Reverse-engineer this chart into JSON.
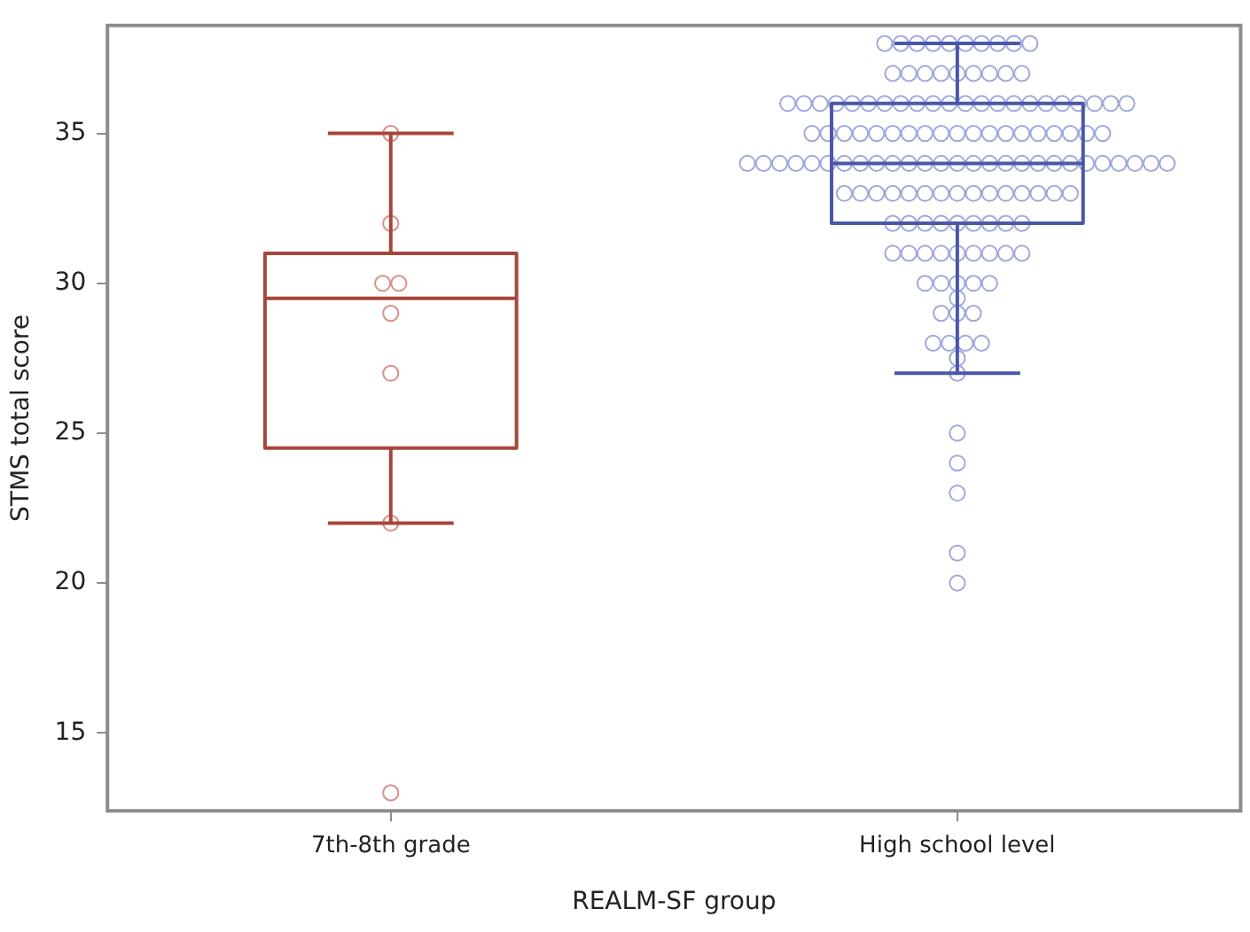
{
  "chart_data": {
    "type": "box",
    "xlabel": "REALM-SF group",
    "ylabel": "STMS total score",
    "categories": [
      "7th-8th grade",
      "High school level"
    ],
    "colors": [
      "#a8453a",
      "#4a58a8"
    ],
    "boxes": [
      {
        "low": 22,
        "q1": 24.5,
        "median": 29.5,
        "q3": 31,
        "high": 35
      },
      {
        "low": 27,
        "q1": 32,
        "median": 34,
        "q3": 36,
        "high": 38
      }
    ],
    "ylim": [
      12.4,
      38.6
    ],
    "yticks": [
      15,
      20,
      25,
      30,
      35
    ],
    "grid": false,
    "legend": false,
    "marker": "circle",
    "series": [
      {
        "type": "scatter",
        "color": "#d9908a",
        "x": [
          "7th-8th grade",
          "7th-8th grade",
          "7th-8th grade",
          "7th-8th grade",
          "7th-8th grade",
          "7th-8th grade",
          "7th-8th grade",
          "7th-8th grade"
        ],
        "values": [
          35,
          32,
          30,
          30,
          29,
          27,
          22,
          13
        ]
      },
      {
        "type": "scatter",
        "color": "#a0a8dc",
        "x": [
          "High school level",
          "High school level",
          "High school level",
          "High school level",
          "High school level",
          "High school level",
          "High school level",
          "High school level",
          "High school level",
          "High school level",
          "High school level",
          "High school level",
          "High school level",
          "High school level",
          "High school level",
          "High school level",
          "High school level",
          "High school level",
          "High school level",
          "High school level",
          "High school level",
          "High school level",
          "High school level",
          "High school level",
          "High school level",
          "High school level",
          "High school level",
          "High school level",
          "High school level",
          "High school level",
          "High school level",
          "High school level",
          "High school level",
          "High school level",
          "High school level",
          "High school level",
          "High school level",
          "High school level",
          "High school level",
          "High school level",
          "High school level",
          "High school level",
          "High school level",
          "High school level",
          "High school level",
          "High school level",
          "High school level",
          "High school level",
          "High school level",
          "High school level",
          "High school level",
          "High school level",
          "High school level",
          "High school level",
          "High school level",
          "High school level",
          "High school level",
          "High school level",
          "High school level",
          "High school level",
          "High school level",
          "High school level",
          "High school level",
          "High school level",
          "High school level",
          "High school level",
          "High school level",
          "High school level",
          "High school level",
          "High school level",
          "High school level",
          "High school level",
          "High school level",
          "High school level",
          "High school level",
          "High school level",
          "High school level",
          "High school level",
          "High school level",
          "High school level",
          "High school level",
          "High school level",
          "High school level",
          "High school level",
          "High school level",
          "High school level",
          "High school level",
          "High school level",
          "High school level",
          "High school level",
          "High school level",
          "High school level",
          "High school level",
          "High school level",
          "High school level",
          "High school level",
          "High school level",
          "High school level",
          "High school level",
          "High school level",
          "High school level",
          "High school level",
          "High school level",
          "High school level",
          "High school level",
          "High school level",
          "High school level",
          "High school level",
          "High school level",
          "High school level",
          "High school level",
          "High school level",
          "High school level",
          "High school level",
          "High school level",
          "High school level",
          "High school level",
          "High school level",
          "High school level",
          "High school level",
          "High school level",
          "High school level",
          "High school level",
          "High school level",
          "High school level",
          "High school level",
          "High school level",
          "High school level",
          "High school level",
          "High school level",
          "High school level",
          "High school level",
          "High school level",
          "High school level",
          "High school level",
          "High school level",
          "High school level",
          "High school level",
          "High school level",
          "High school level"
        ],
        "values": [
          38,
          38,
          38,
          38,
          38,
          38,
          38,
          38,
          38,
          38,
          37,
          37,
          37,
          37,
          37,
          37,
          37,
          37,
          37,
          36,
          36,
          36,
          36,
          36,
          36,
          36,
          36,
          36,
          36,
          36,
          36,
          36,
          36,
          36,
          36,
          36,
          36,
          36,
          36,
          36,
          36,
          35,
          35,
          35,
          35,
          35,
          35,
          35,
          35,
          35,
          35,
          35,
          35,
          35,
          35,
          35,
          35,
          35,
          35,
          35,
          34,
          34,
          34,
          34,
          34,
          34,
          34,
          34,
          34,
          34,
          34,
          34,
          34,
          34,
          34,
          34,
          34,
          34,
          34,
          34,
          34,
          34,
          34,
          34,
          34,
          34,
          34,
          33,
          33,
          33,
          33,
          33,
          33,
          33,
          33,
          33,
          33,
          33,
          33,
          33,
          33,
          33,
          32,
          32,
          32,
          32,
          32,
          32,
          32,
          32,
          32,
          31,
          31,
          31,
          31,
          31,
          31,
          31,
          31,
          31,
          30,
          30,
          30,
          30,
          30,
          29.5,
          29,
          29,
          29,
          28,
          28,
          28,
          28,
          27.5,
          27,
          25,
          24,
          23,
          21,
          20
        ]
      }
    ]
  }
}
